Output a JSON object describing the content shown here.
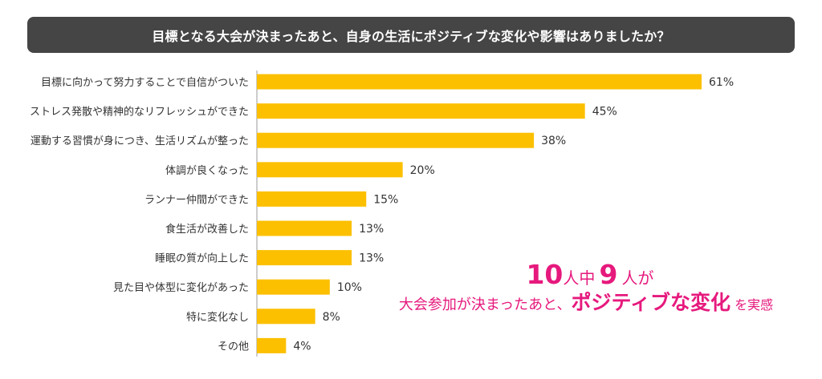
{
  "chart_data": {
    "type": "bar",
    "orientation": "horizontal",
    "title": "目標となる大会が決まったあと、自身の生活にポジティブな変化や影響はありましたか？",
    "categories": [
      "目標に向かって努力することで自信がついた",
      "ストレス発散や精神的なリフレッシュができた",
      "運動する習慣が身につき、生活リズムが整った",
      "体調が良くなった",
      "ランナー仲間ができた",
      "食生活が改善した",
      "睡眠の質が向上した",
      "見た目や体型に変化があった",
      "特に変化なし",
      "その他"
    ],
    "values": [
      61,
      45,
      38,
      20,
      15,
      13,
      13,
      10,
      8,
      4
    ],
    "value_labels": [
      "61%",
      "45%",
      "38%",
      "20%",
      "15%",
      "13%",
      "13%",
      "10%",
      "8%",
      "4%"
    ],
    "xlim": [
      0,
      65
    ],
    "bar_color": "#fcc000",
    "grid": false
  },
  "callout": {
    "num1": "10",
    "t1": "人中",
    "num2": "9",
    "t2": "人が",
    "t3": "大会参加が決まったあと、",
    "emph": "ポジティブな変化",
    "t4": "を実感",
    "color": "#e6197d"
  }
}
